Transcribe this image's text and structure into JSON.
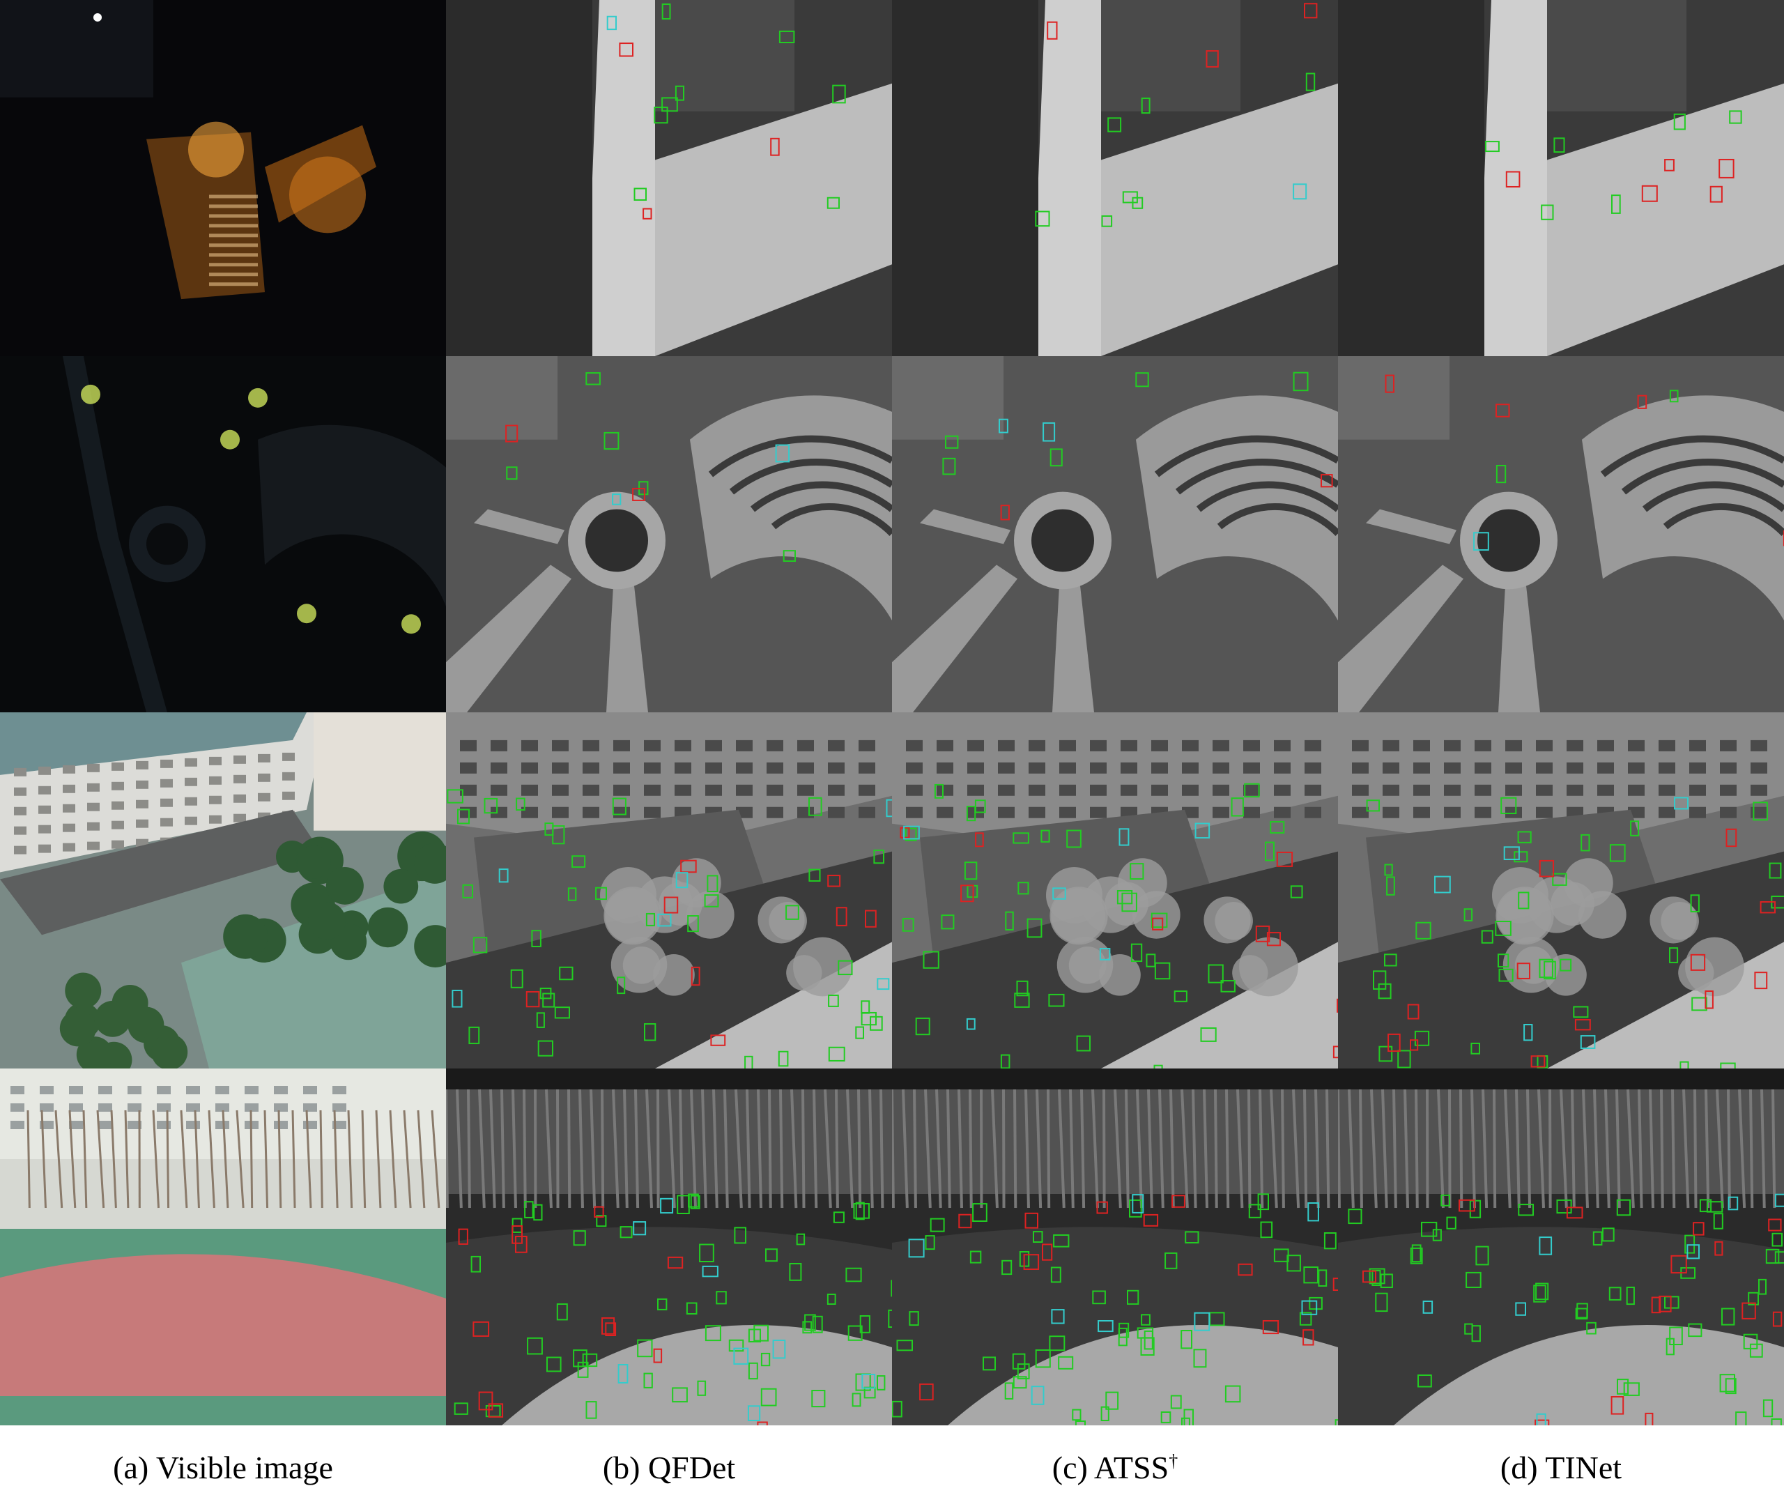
{
  "figure": {
    "columns": [
      {
        "id": "a",
        "caption": "(a) Visible image",
        "sup": ""
      },
      {
        "id": "b",
        "caption": "(b) QFDet",
        "sup": ""
      },
      {
        "id": "c",
        "caption": "(c) ATSS",
        "sup": "†"
      },
      {
        "id": "d",
        "caption": "(d) TINet",
        "sup": ""
      }
    ],
    "rows": [
      {
        "scene": "night-crossroad",
        "visible_tone": "dark-night-street-lights",
        "thermal_tone": "light-gray-road"
      },
      {
        "scene": "night-amphitheater",
        "visible_tone": "dark-night-plaza",
        "thermal_tone": "mid-gray-plaza"
      },
      {
        "scene": "day-buildings-courts",
        "visible_tone": "daylight-buildings",
        "thermal_tone": "gray-buildings"
      },
      {
        "scene": "day-sports-field",
        "visible_tone": "daylight-field",
        "thermal_tone": "dark-gray-field"
      }
    ],
    "box_colors": {
      "true_positive": "#22cc22",
      "false_positive": "#dd2222",
      "missed": "#33cccc"
    }
  }
}
